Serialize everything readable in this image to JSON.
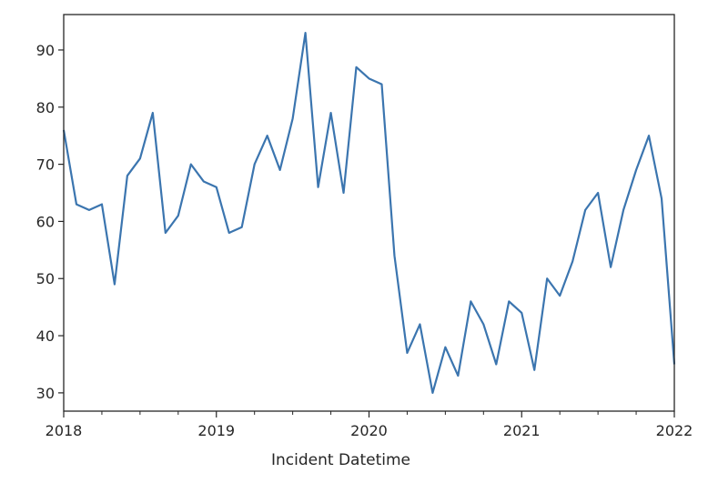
{
  "chart_data": {
    "type": "line",
    "title": "",
    "xlabel": "Incident Datetime",
    "ylabel": "",
    "x": [
      "2018-01",
      "2018-02",
      "2018-03",
      "2018-04",
      "2018-05",
      "2018-06",
      "2018-07",
      "2018-08",
      "2018-09",
      "2018-10",
      "2018-11",
      "2018-12",
      "2019-01",
      "2019-02",
      "2019-03",
      "2019-04",
      "2019-05",
      "2019-06",
      "2019-07",
      "2019-08",
      "2019-09",
      "2019-10",
      "2019-11",
      "2019-12",
      "2020-01",
      "2020-02",
      "2020-03",
      "2020-04",
      "2020-05",
      "2020-06",
      "2020-07",
      "2020-08",
      "2020-09",
      "2020-10",
      "2020-11",
      "2020-12",
      "2021-01",
      "2021-02",
      "2021-03",
      "2021-04",
      "2021-05",
      "2021-06",
      "2021-07",
      "2021-08",
      "2021-09",
      "2021-10",
      "2021-11",
      "2021-12",
      "2022-01"
    ],
    "series": [
      {
        "values": [
          76,
          63,
          62,
          63,
          49,
          68,
          71,
          79,
          58,
          61,
          70,
          67,
          66,
          58,
          59,
          70,
          75,
          69,
          78,
          93,
          66,
          79,
          65,
          87,
          85,
          84,
          54,
          37,
          42,
          30,
          38,
          33,
          46,
          42,
          35,
          46,
          44,
          34,
          50,
          47,
          53,
          62,
          65,
          52,
          62,
          69,
          75,
          64,
          35
        ]
      }
    ],
    "line_color": "#3b75af",
    "xlim": [
      "2018-01",
      "2022-01"
    ],
    "ylim": [
      26.8,
      96.2
    ],
    "x_ticks": [
      "2018",
      "2019",
      "2020",
      "2021",
      "2022"
    ],
    "y_ticks": [
      30,
      40,
      50,
      60,
      70,
      80,
      90
    ],
    "grid": false
  }
}
